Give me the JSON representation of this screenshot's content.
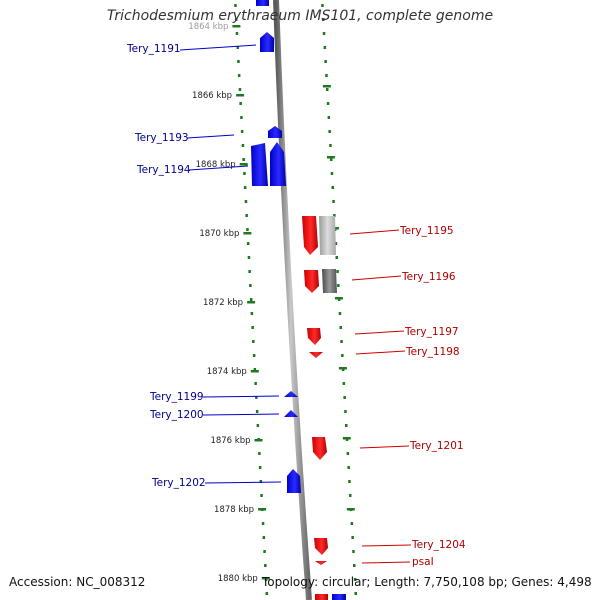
{
  "title": "Trichodesmium erythraeum IMS101, complete genome",
  "footer": {
    "accession": "Accession: NC_008312",
    "info": "Topology: circular; Length: 7,750,108 bp; Genes: 4,498"
  },
  "colors": {
    "forward_strand": "#1a1aff",
    "reverse_strand": "#ff1a1a",
    "backbone": "#8c8c8c",
    "tick_marks": "#1f7a1f",
    "forward_label": "#00008b",
    "reverse_label": "#b00000"
  },
  "scale": {
    "unit": "kbp",
    "labels": [
      "1864 kbp",
      "1866 kbp",
      "1868 kbp",
      "1870 kbp",
      "1872 kbp",
      "1874 kbp",
      "1876 kbp",
      "1878 kbp",
      "1880 kbp"
    ]
  },
  "genes": [
    {
      "name": "Tery_1191",
      "strand": "forward"
    },
    {
      "name": "Tery_1193",
      "strand": "forward"
    },
    {
      "name": "Tery_1194",
      "strand": "forward"
    },
    {
      "name": "Tery_1195",
      "strand": "reverse"
    },
    {
      "name": "Tery_1196",
      "strand": "reverse"
    },
    {
      "name": "Tery_1197",
      "strand": "reverse"
    },
    {
      "name": "Tery_1198",
      "strand": "reverse"
    },
    {
      "name": "Tery_1199",
      "strand": "forward"
    },
    {
      "name": "Tery_1200",
      "strand": "forward"
    },
    {
      "name": "Tery_1201",
      "strand": "reverse"
    },
    {
      "name": "Tery_1202",
      "strand": "forward"
    },
    {
      "name": "Tery_1204",
      "strand": "reverse"
    },
    {
      "name": "psaI",
      "strand": "reverse"
    }
  ]
}
